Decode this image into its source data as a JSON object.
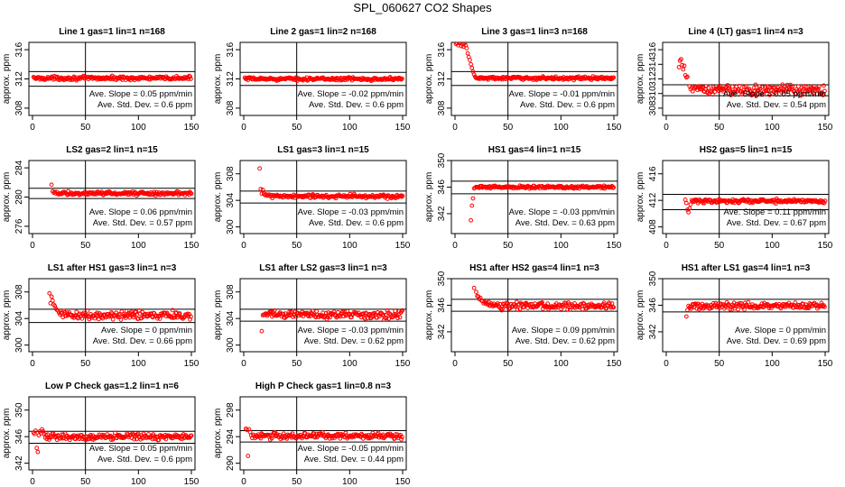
{
  "figure": {
    "title": "SPL_060627  CO2 Shapes"
  },
  "chart_data": [
    {
      "type": "scatter",
      "title": "Line 1 gas=1 lin=1 n=168",
      "ylabel": "approx. ppm",
      "xlim": [
        0,
        150
      ],
      "ylim": [
        307,
        317
      ],
      "xticks": [
        0,
        50,
        100,
        150
      ],
      "yticks": [
        308,
        312,
        316
      ],
      "hlines": [
        313.0,
        311.0
      ],
      "vline": 50,
      "start": 1,
      "end": 150,
      "level": 312.1,
      "noise": 0.12,
      "head": [],
      "annot": [
        "Ave. Slope =  0.05  ppm/min",
        "Ave. Std. Dev. =  0.6  ppm"
      ]
    },
    {
      "type": "scatter",
      "title": "Line 2 gas=1 lin=2 n=168",
      "ylabel": "approx. ppm",
      "xlim": [
        0,
        150
      ],
      "ylim": [
        307,
        317
      ],
      "xticks": [
        0,
        50,
        100,
        150
      ],
      "yticks": [
        308,
        312,
        316
      ],
      "hlines": [
        312.9,
        311.1
      ],
      "vline": 50,
      "start": 1,
      "end": 150,
      "level": 312.0,
      "noise": 0.1,
      "head": [],
      "annot": [
        "Ave. Slope =  -0.02  ppm/min",
        "Ave. Std. Dev. =  0.6  ppm"
      ]
    },
    {
      "type": "scatter",
      "title": "Line 3 gas=1 lin=3 n=168",
      "ylabel": "approx. ppm",
      "xlim": [
        0,
        150
      ],
      "ylim": [
        307,
        317
      ],
      "xticks": [
        0,
        50,
        100,
        150
      ],
      "yticks": [
        308,
        312,
        316
      ],
      "hlines": [
        313.0,
        311.1
      ],
      "vline": 50,
      "start": 20,
      "end": 150,
      "level": 312.1,
      "noise": 0.1,
      "head": [
        [
          1,
          316.8
        ],
        [
          2,
          316.9
        ],
        [
          3,
          316.6
        ],
        [
          4,
          316.9
        ],
        [
          5,
          317.0
        ],
        [
          6,
          316.5
        ],
        [
          7,
          316.8
        ],
        [
          8,
          316.4
        ],
        [
          9,
          316.9
        ],
        [
          10,
          316.6
        ],
        [
          11,
          316.2
        ],
        [
          12,
          315.5
        ],
        [
          13,
          315.0
        ],
        [
          14,
          314.6
        ],
        [
          15,
          314.0
        ],
        [
          16,
          313.5
        ],
        [
          17,
          313.0
        ],
        [
          18,
          312.6
        ],
        [
          19,
          312.3
        ]
      ],
      "annot": [
        "Ave. Slope =  -0.01  ppm/min",
        "Ave. Std. Dev. =  0.6  ppm"
      ]
    },
    {
      "type": "scatter",
      "title": "Line 4 (LT) gas=1 lin=4 n=3",
      "ylabel": "approx. ppm",
      "xlim": [
        0,
        150
      ],
      "ylim": [
        307,
        317
      ],
      "xticks": [
        0,
        50,
        100,
        150
      ],
      "yticks": [
        308,
        310,
        312,
        314,
        316
      ],
      "hlines": [
        311.2,
        309.7
      ],
      "vline": 50,
      "start": 28,
      "end": 150,
      "level": 310.5,
      "noise": 0.35,
      "head": [
        [
          12,
          313.6
        ],
        [
          13,
          314.5
        ],
        [
          14,
          314.7
        ],
        [
          15,
          313.9
        ],
        [
          16,
          313.3
        ],
        [
          17,
          313.8
        ],
        [
          18,
          312.5
        ],
        [
          19,
          312.2
        ],
        [
          20,
          312.3
        ],
        [
          22,
          311.0
        ],
        [
          23,
          310.6
        ],
        [
          24,
          310.8
        ],
        [
          25,
          310.3
        ],
        [
          26,
          310.7
        ],
        [
          27,
          310.9
        ]
      ],
      "annot": [
        "Ave. Slope =  0.05  ppm/min",
        "Ave. Std. Dev. =  0.54  ppm"
      ]
    },
    {
      "type": "scatter",
      "title": "LS2 gas=2 lin=1 n=15",
      "ylabel": "approx. ppm",
      "xlim": [
        0,
        150
      ],
      "ylim": [
        275,
        285
      ],
      "xticks": [
        0,
        50,
        100,
        150
      ],
      "yticks": [
        276,
        280,
        284
      ],
      "hlines": [
        281.2,
        279.8
      ],
      "vline": 50,
      "start": 24,
      "end": 150,
      "level": 280.5,
      "noise": 0.12,
      "head": [
        [
          18,
          281.7
        ],
        [
          19,
          280.8
        ],
        [
          20,
          280.6
        ],
        [
          21,
          280.7
        ],
        [
          22,
          280.5
        ],
        [
          23,
          280.7
        ]
      ],
      "annot": [
        "Ave. Slope =  0.06  ppm/min",
        "Ave. Std. Dev. =  0.57  ppm"
      ]
    },
    {
      "type": "scatter",
      "title": "LS1 gas=3 lin=1 n=15",
      "ylabel": "approx. ppm",
      "xlim": [
        0,
        150
      ],
      "ylim": [
        299,
        310
      ],
      "xticks": [
        0,
        50,
        100,
        150
      ],
      "yticks": [
        300,
        304,
        308
      ],
      "hlines": [
        305.4,
        303.6
      ],
      "vline": 50,
      "start": 24,
      "end": 150,
      "level": 304.6,
      "noise": 0.15,
      "head": [
        [
          15,
          308.8
        ],
        [
          16,
          305.7
        ],
        [
          17,
          305.0
        ],
        [
          18,
          305.6
        ],
        [
          19,
          305.0
        ],
        [
          20,
          304.8
        ],
        [
          21,
          304.9
        ],
        [
          22,
          304.7
        ],
        [
          23,
          304.8
        ]
      ],
      "annot": [
        "Ave. Slope =  -0.03  ppm/min",
        "Ave. Std. Dev. =  0.6  ppm"
      ]
    },
    {
      "type": "scatter",
      "title": "HS1 gas=4 lin=1 n=15",
      "ylabel": "approx. ppm",
      "xlim": [
        0,
        150
      ],
      "ylim": [
        339,
        350
      ],
      "xticks": [
        0,
        50,
        100,
        150
      ],
      "yticks": [
        342,
        346,
        350
      ],
      "hlines": [
        346.9,
        345.0
      ],
      "vline": 50,
      "start": 20,
      "end": 150,
      "level": 346.0,
      "noise": 0.1,
      "head": [
        [
          15,
          341.0
        ],
        [
          16,
          343.2
        ],
        [
          17,
          344.3
        ],
        [
          18,
          345.8
        ],
        [
          19,
          345.9
        ]
      ],
      "annot": [
        "Ave. Slope =  -0.03  ppm/min",
        "Ave. Std. Dev. =  0.63  ppm"
      ]
    },
    {
      "type": "scatter",
      "title": "HS2 gas=5 lin=1 n=15",
      "ylabel": "approx. ppm",
      "xlim": [
        0,
        150
      ],
      "ylim": [
        407,
        418
      ],
      "xticks": [
        0,
        50,
        100,
        150
      ],
      "yticks": [
        408,
        412,
        416
      ],
      "hlines": [
        412.9,
        410.6
      ],
      "vline": 50,
      "start": 24,
      "end": 150,
      "level": 411.9,
      "noise": 0.15,
      "head": [
        [
          18,
          412.1
        ],
        [
          19,
          411.6
        ],
        [
          20,
          410.6
        ],
        [
          21,
          410.2
        ],
        [
          22,
          410.8
        ],
        [
          23,
          411.4
        ]
      ],
      "annot": [
        "Ave. Slope =  0.11  ppm/min",
        "Ave. Std. Dev. =  0.67  ppm"
      ]
    },
    {
      "type": "scatter",
      "title": "LS1 after HS1 gas=3 lin=1 n=3",
      "ylabel": "approx. ppm",
      "xlim": [
        0,
        150
      ],
      "ylim": [
        299,
        310
      ],
      "xticks": [
        0,
        50,
        100,
        150
      ],
      "yticks": [
        300,
        304,
        308
      ],
      "hlines": [
        305.4,
        303.4
      ],
      "vline": 50,
      "start": 28,
      "end": 150,
      "level": 304.5,
      "noise": 0.3,
      "head": [
        [
          16,
          307.8
        ],
        [
          17,
          306.3
        ],
        [
          18,
          307.3
        ],
        [
          19,
          306.7
        ],
        [
          20,
          306.1
        ],
        [
          21,
          305.9
        ],
        [
          22,
          305.5
        ],
        [
          23,
          305.3
        ],
        [
          24,
          305.2
        ],
        [
          25,
          304.9
        ],
        [
          26,
          304.6
        ],
        [
          27,
          304.8
        ]
      ],
      "annot": [
        "Ave. Slope =  0  ppm/min",
        "Ave. Std. Dev. =  0.66  ppm"
      ]
    },
    {
      "type": "scatter",
      "title": "LS1 after LS2 gas=3 lin=1 n=3",
      "ylabel": "approx. ppm",
      "xlim": [
        0,
        150
      ],
      "ylim": [
        299,
        310
      ],
      "xticks": [
        0,
        50,
        100,
        150
      ],
      "yticks": [
        300,
        304,
        308
      ],
      "hlines": [
        305.4,
        303.6
      ],
      "vline": 50,
      "start": 20,
      "end": 150,
      "level": 304.6,
      "noise": 0.3,
      "head": [
        [
          17,
          302.1
        ],
        [
          18,
          304.5
        ],
        [
          19,
          304.6
        ]
      ],
      "annot": [
        "Ave. Slope =  -0.03  ppm/min",
        "Ave. Std. Dev. =  0.62  ppm"
      ]
    },
    {
      "type": "scatter",
      "title": "HS1 after HS2 gas=4 lin=1 n=3",
      "ylabel": "approx. ppm",
      "xlim": [
        0,
        150
      ],
      "ylim": [
        339,
        350
      ],
      "xticks": [
        0,
        50,
        100,
        150
      ],
      "yticks": [
        342,
        346,
        350
      ],
      "hlines": [
        346.9,
        345.1
      ],
      "vline": 50,
      "start": 32,
      "end": 150,
      "level": 345.9,
      "noise": 0.25,
      "head": [
        [
          18,
          348.6
        ],
        [
          20,
          348.0
        ],
        [
          21,
          347.4
        ],
        [
          22,
          347.3
        ],
        [
          23,
          346.9
        ],
        [
          24,
          347.1
        ],
        [
          25,
          346.7
        ],
        [
          26,
          346.6
        ],
        [
          27,
          346.3
        ],
        [
          28,
          346.5
        ],
        [
          29,
          346.2
        ],
        [
          30,
          346.4
        ],
        [
          31,
          346.1
        ]
      ],
      "annot": [
        "Ave. Slope =  0.09  ppm/min",
        "Ave. Std. Dev. =  0.62  ppm"
      ]
    },
    {
      "type": "scatter",
      "title": "HS1 after LS1 gas=4 lin=1 n=3",
      "ylabel": "approx. ppm",
      "xlim": [
        0,
        150
      ],
      "ylim": [
        339,
        350
      ],
      "xticks": [
        0,
        50,
        100,
        150
      ],
      "yticks": [
        342,
        346,
        350
      ],
      "hlines": [
        346.9,
        345.0
      ],
      "vline": 50,
      "start": 22,
      "end": 150,
      "level": 345.9,
      "noise": 0.25,
      "head": [
        [
          19,
          344.3
        ],
        [
          20,
          345.3
        ],
        [
          21,
          345.9
        ]
      ],
      "annot": [
        "Ave. Slope =  0  ppm/min",
        "Ave. Std. Dev. =  0.69  ppm"
      ]
    },
    {
      "type": "scatter",
      "title": "Low P Check gas=1.2 lin=1 n=6",
      "ylabel": "approx. ppm",
      "xlim": [
        0,
        150
      ],
      "ylim": [
        341,
        352
      ],
      "xticks": [
        0,
        50,
        100,
        150
      ],
      "yticks": [
        342,
        346,
        350
      ],
      "hlines": [
        346.8,
        345.0
      ],
      "vline": 50,
      "start": 12,
      "end": 150,
      "level": 346.0,
      "noise": 0.22,
      "head": [
        [
          1,
          346.6
        ],
        [
          2,
          346.4
        ],
        [
          3,
          346.9
        ],
        [
          4,
          344.3
        ],
        [
          5,
          343.7
        ],
        [
          6,
          346.2
        ],
        [
          7,
          346.8
        ],
        [
          8,
          346.5
        ],
        [
          9,
          347.1
        ],
        [
          10,
          346.8
        ],
        [
          11,
          346.4
        ]
      ],
      "annot": [
        "Ave. Slope =  0.05  ppm/min",
        "Ave. Std. Dev. =  0.6  ppm"
      ]
    },
    {
      "type": "scatter",
      "title": "High P Check gas=1 lin=0.8 n=3",
      "ylabel": "approx. ppm",
      "xlim": [
        0,
        150
      ],
      "ylim": [
        289,
        300
      ],
      "xticks": [
        0,
        50,
        100,
        150
      ],
      "yticks": [
        290,
        294,
        298
      ],
      "hlines": [
        294.9,
        293.2
      ],
      "vline": 50,
      "start": 10,
      "end": 150,
      "level": 294.1,
      "noise": 0.22,
      "head": [
        [
          2,
          295.2
        ],
        [
          3,
          295.0
        ],
        [
          4,
          291.1
        ],
        [
          5,
          295.1
        ],
        [
          6,
          294.7
        ],
        [
          7,
          294.2
        ],
        [
          8,
          293.8
        ],
        [
          9,
          294.3
        ]
      ],
      "annot": [
        "Ave. Slope =  -0.05  ppm/min",
        "Ave. Std. Dev. =  0.44  ppm"
      ]
    }
  ]
}
